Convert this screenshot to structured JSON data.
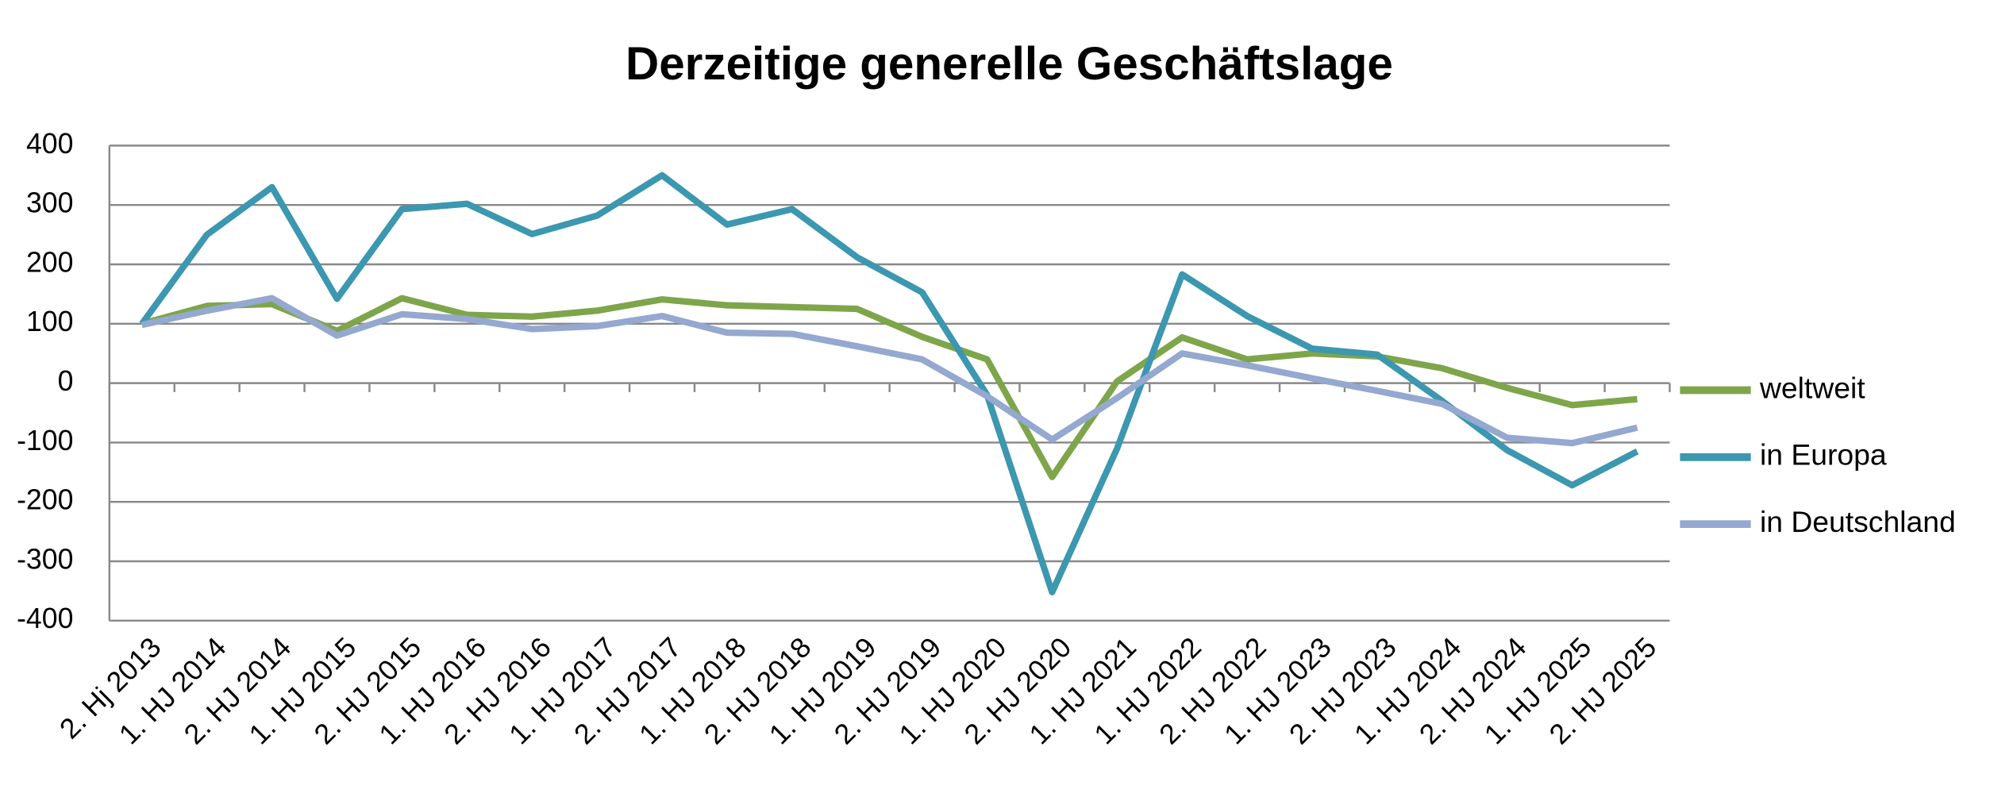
{
  "chart_data": {
    "type": "line",
    "title": "Derzeitige generelle Geschäftslage",
    "categories": [
      "2. Hj 2013",
      "1. HJ 2014",
      "2. HJ 2014",
      "1. HJ 2015",
      "2. HJ 2015",
      "1. HJ 2016",
      "2. HJ 2016",
      "1. HJ 2017",
      "2. HJ 2017",
      "1. HJ 2018",
      "2. HJ 2018",
      "1. HJ 2019",
      "2. HJ 2019",
      "1. HJ 2020",
      "2. HJ 2020",
      "1. HJ 2021",
      "1. HJ 2022",
      "2. HJ 2022",
      "1. HJ 2023",
      "2. HJ 2023",
      "1. HJ 2024",
      "2. HJ 2024",
      "1. HJ 2025",
      "2. HJ 2025"
    ],
    "series": [
      {
        "name": "weltweit",
        "color": "#7fa54a",
        "values": [
          100,
          130,
          133,
          88,
          143,
          115,
          112,
          122,
          141,
          131,
          128,
          125,
          78,
          40,
          -158,
          3,
          77,
          40,
          50,
          45,
          25,
          -8,
          -37,
          -27
        ]
      },
      {
        "name": "in Europa",
        "color": "#3c97b0",
        "values": [
          100,
          250,
          330,
          142,
          293,
          302,
          251,
          282,
          350,
          267,
          293,
          212,
          153,
          -20,
          -352,
          -110,
          183,
          113,
          58,
          48,
          -30,
          -113,
          -172,
          -115
        ]
      },
      {
        "name": "in Deutschland",
        "color": "#94a8d0",
        "values": [
          98,
          122,
          143,
          80,
          116,
          108,
          91,
          96,
          113,
          85,
          83,
          62,
          40,
          -22,
          -95,
          -25,
          50,
          30,
          8,
          -13,
          -35,
          -92,
          -101,
          -75
        ]
      }
    ],
    "ylim": [
      -400,
      400
    ],
    "yticks": [
      -400,
      -300,
      -200,
      -100,
      0,
      100,
      200,
      300,
      400
    ],
    "grid": true,
    "legend": "right"
  }
}
